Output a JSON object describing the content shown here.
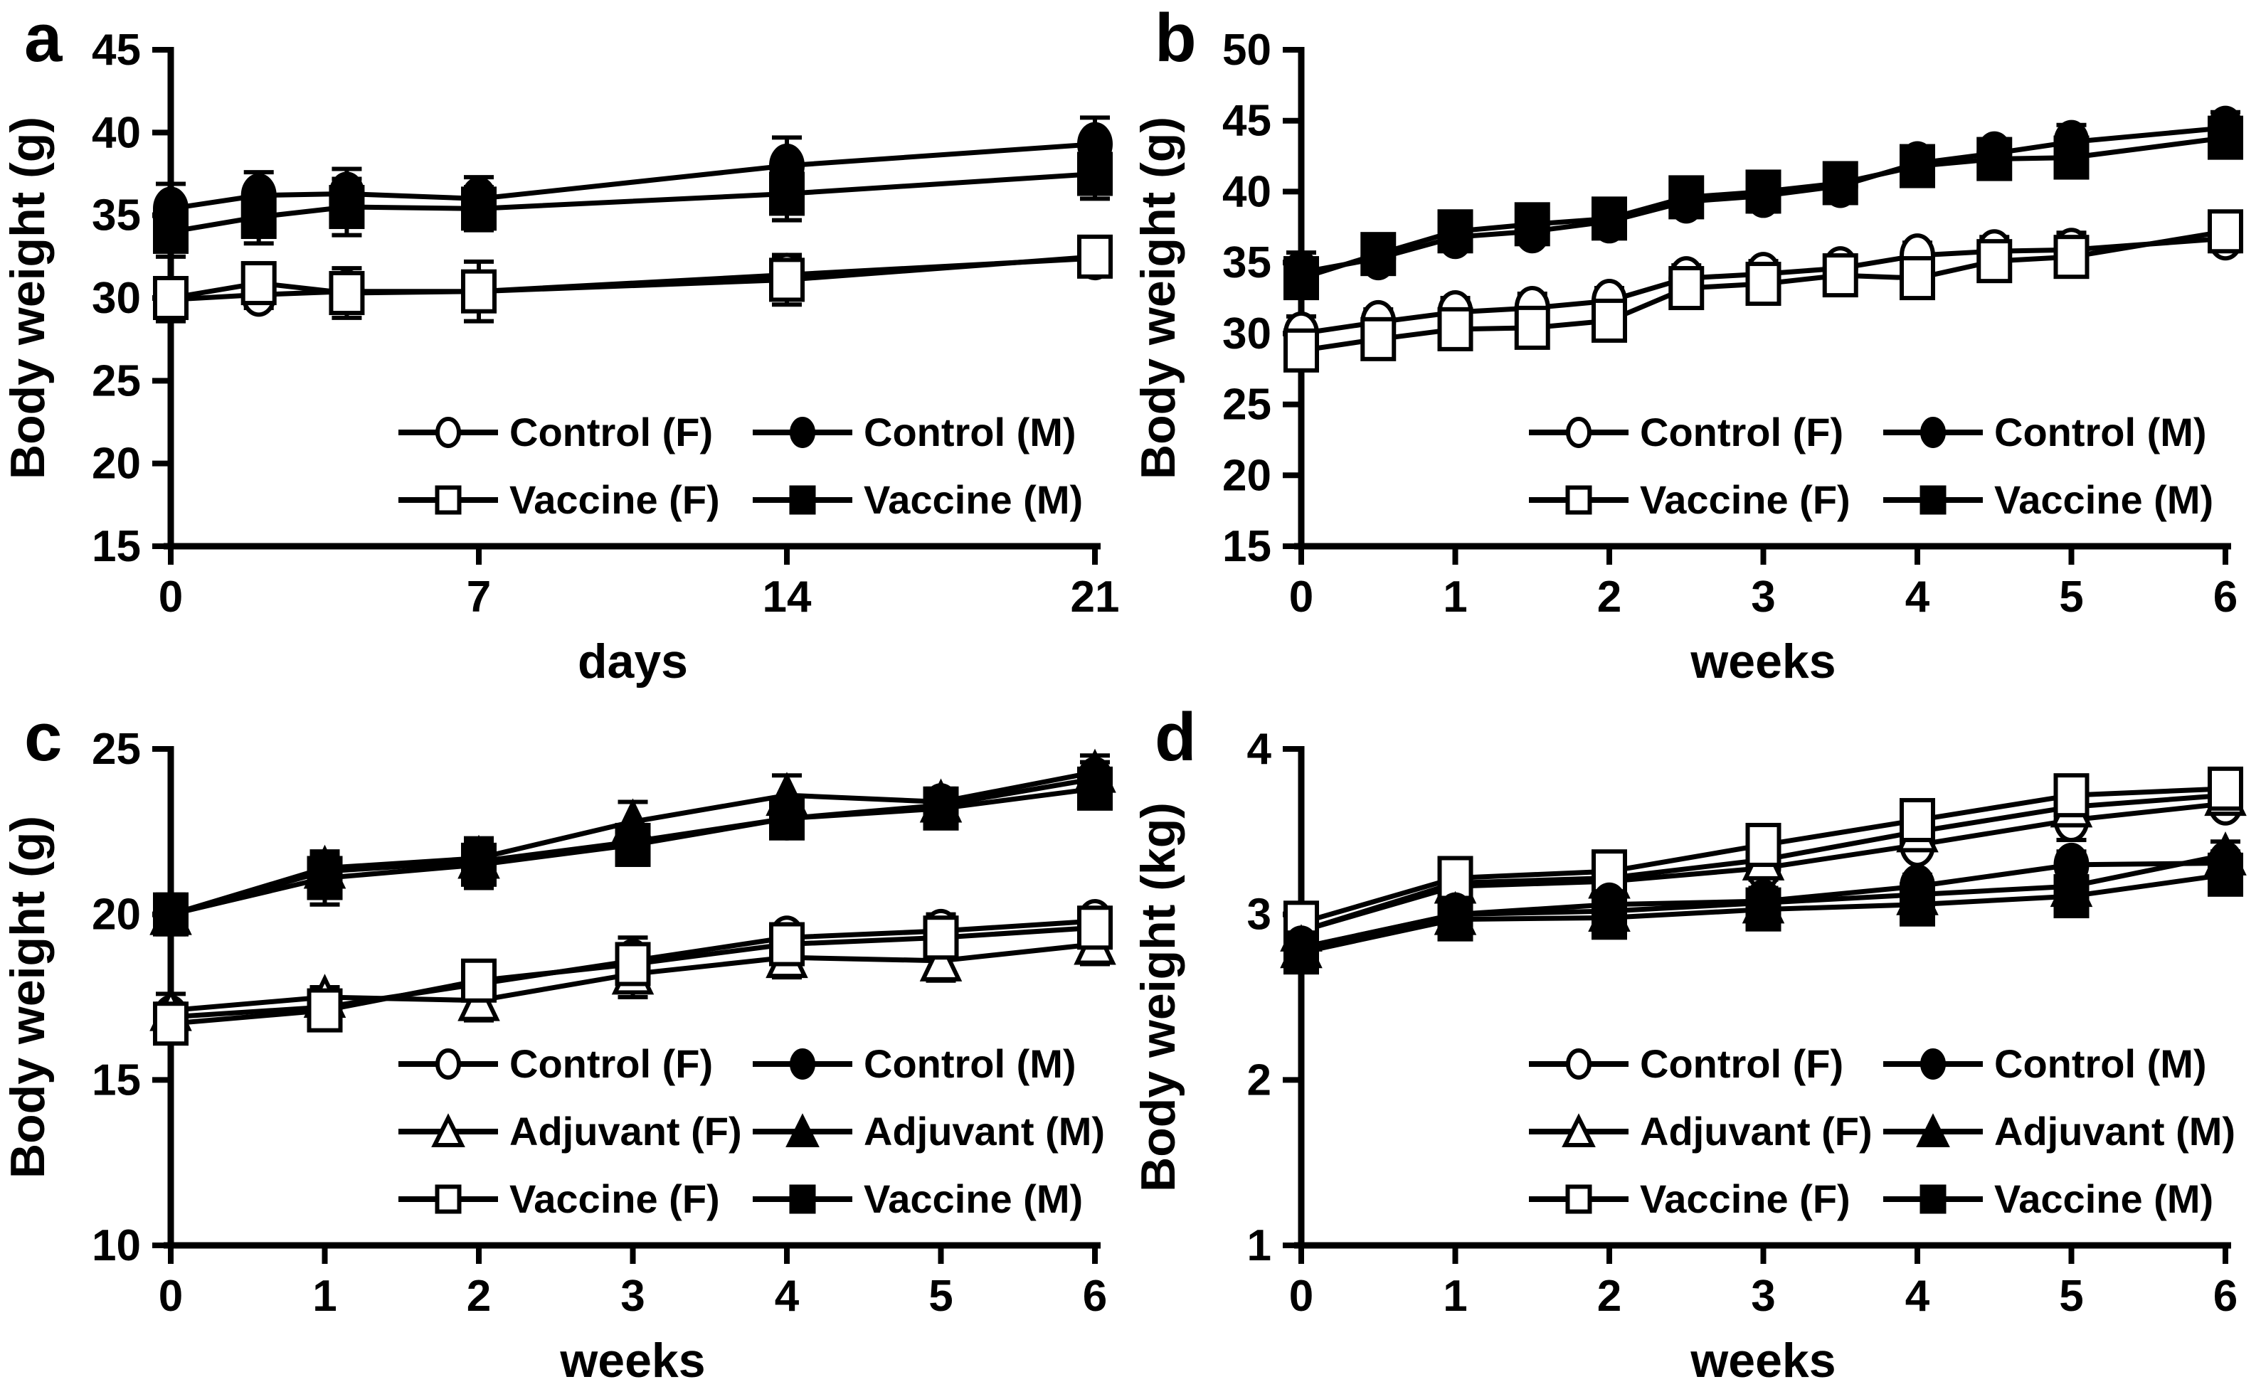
{
  "figure": {
    "background_color": "#ffffff",
    "ink_color": "#000000",
    "panel_letters": [
      "a",
      "b",
      "c",
      "d"
    ]
  },
  "chart_data": [
    {
      "panel": "a",
      "type": "line",
      "xlabel": "days",
      "ylabel": "Body weight (g)",
      "xlim": [
        0,
        21
      ],
      "ylim": [
        15,
        45
      ],
      "xticks": [
        0,
        7,
        14,
        21
      ],
      "yticks": [
        15,
        20,
        25,
        30,
        35,
        40,
        45
      ],
      "grid": false,
      "legend_position": "inside-bottom-center",
      "x": [
        0,
        2,
        4,
        7,
        14,
        21
      ],
      "series": [
        {
          "name": "Control (F)",
          "marker": "circle",
          "variant": "open",
          "values": [
            29.9,
            30.2,
            30.4,
            30.4,
            31.4,
            32.4
          ],
          "errors": [
            1.3,
            0.8,
            0.9,
            1.0,
            1.0,
            0.8
          ]
        },
        {
          "name": "Vaccine (F)",
          "marker": "square",
          "variant": "open",
          "values": [
            30.0,
            30.9,
            30.3,
            30.4,
            31.1,
            32.5
          ],
          "errors": [
            1.2,
            0.9,
            1.5,
            1.8,
            1.5,
            1.0
          ]
        },
        {
          "name": "Control (M)",
          "marker": "circle",
          "variant": "filled",
          "values": [
            35.4,
            36.2,
            36.3,
            36.0,
            38.0,
            39.3
          ],
          "errors": [
            1.5,
            1.4,
            1.5,
            1.3,
            1.7,
            1.6
          ]
        },
        {
          "name": "Vaccine (M)",
          "marker": "square",
          "variant": "filled",
          "values": [
            34.0,
            34.9,
            35.5,
            35.4,
            36.3,
            37.5
          ],
          "errors": [
            1.5,
            1.6,
            1.7,
            1.3,
            1.6,
            1.5
          ]
        }
      ],
      "legend_rows": [
        [
          0,
          2
        ],
        [
          1,
          3
        ]
      ]
    },
    {
      "panel": "b",
      "type": "line",
      "xlabel": "weeks",
      "ylabel": "Body weight (g)",
      "xlim": [
        0,
        6
      ],
      "ylim": [
        15,
        50
      ],
      "xticks": [
        0,
        1,
        2,
        3,
        4,
        5,
        6
      ],
      "yticks": [
        15,
        20,
        25,
        30,
        35,
        40,
        45,
        50
      ],
      "grid": false,
      "legend_position": "inside-bottom-center",
      "x": [
        0,
        0.5,
        1,
        1.5,
        2,
        2.5,
        3,
        3.5,
        4,
        4.5,
        5,
        6
      ],
      "series": [
        {
          "name": "Control (F)",
          "marker": "circle",
          "variant": "open",
          "values": [
            30.0,
            30.8,
            31.5,
            31.8,
            32.3,
            33.9,
            34.2,
            34.6,
            35.5,
            35.8,
            35.9,
            36.7
          ],
          "errors": [
            1.2,
            0.9,
            1.0,
            1.0,
            0.9,
            0.9,
            0.9,
            0.8,
            0.9,
            1.0,
            1.2,
            0.9
          ]
        },
        {
          "name": "Vaccine (F)",
          "marker": "square",
          "variant": "open",
          "values": [
            28.8,
            29.6,
            30.3,
            30.4,
            30.9,
            33.2,
            33.5,
            34.1,
            33.9,
            35.1,
            35.4,
            37.2
          ],
          "errors": [
            1.0,
            1.1,
            1.2,
            1.1,
            0.9,
            1.2,
            1.0,
            1.1,
            1.4,
            1.1,
            1.0,
            1.1
          ]
        },
        {
          "name": "Control (M)",
          "marker": "circle",
          "variant": "filled",
          "values": [
            34.3,
            35.3,
            36.8,
            37.2,
            37.9,
            39.3,
            39.7,
            40.4,
            42.0,
            42.7,
            43.5,
            44.5
          ],
          "errors": [
            1.4,
            0.8,
            0.7,
            0.8,
            0.8,
            1.0,
            1.1,
            1.0,
            0.8,
            1.0,
            1.2,
            1.1
          ]
        },
        {
          "name": "Vaccine (M)",
          "marker": "square",
          "variant": "filled",
          "values": [
            33.9,
            35.6,
            37.2,
            37.7,
            38.1,
            39.6,
            40.0,
            40.6,
            41.8,
            42.3,
            42.4,
            43.8
          ],
          "errors": [
            1.2,
            0.8,
            0.8,
            0.9,
            0.8,
            0.9,
            1.0,
            0.9,
            0.9,
            0.8,
            0.9,
            0.9
          ]
        }
      ],
      "legend_rows": [
        [
          0,
          2
        ],
        [
          1,
          3
        ]
      ]
    },
    {
      "panel": "c",
      "type": "line",
      "xlabel": "weeks",
      "ylabel": "Body weight (g)",
      "xlim": [
        0,
        6
      ],
      "ylim": [
        10,
        25
      ],
      "xticks": [
        0,
        1,
        2,
        3,
        4,
        5,
        6
      ],
      "yticks": [
        10,
        15,
        20,
        25
      ],
      "grid": false,
      "legend_position": "inside-bottom-center",
      "x": [
        0,
        1,
        2,
        3,
        4,
        5,
        6
      ],
      "series": [
        {
          "name": "Control (F)",
          "marker": "circle",
          "variant": "open",
          "values": [
            16.9,
            17.2,
            17.9,
            18.6,
            19.3,
            19.5,
            19.8
          ],
          "errors": [
            0.4,
            0.3,
            0.4,
            0.5,
            0.4,
            0.5,
            0.4
          ]
        },
        {
          "name": "Adjuvant (F)",
          "marker": "triangle",
          "variant": "open",
          "values": [
            17.1,
            17.5,
            17.4,
            18.2,
            18.7,
            18.6,
            19.1
          ],
          "errors": [
            0.5,
            0.3,
            0.6,
            0.7,
            0.6,
            0.6,
            0.6
          ]
        },
        {
          "name": "Vaccine (F)",
          "marker": "square",
          "variant": "open",
          "values": [
            16.7,
            17.1,
            18.0,
            18.5,
            19.1,
            19.3,
            19.6
          ],
          "errors": [
            0.5,
            0.4,
            0.5,
            0.8,
            0.5,
            0.4,
            0.5
          ]
        },
        {
          "name": "Control (M)",
          "marker": "circle",
          "variant": "filled",
          "values": [
            20.0,
            21.3,
            21.6,
            22.2,
            22.9,
            23.3,
            24.1
          ],
          "errors": [
            0.6,
            0.5,
            0.5,
            0.5,
            0.4,
            0.4,
            0.5
          ]
        },
        {
          "name": "Adjuvant (M)",
          "marker": "triangle",
          "variant": "filled",
          "values": [
            20.0,
            21.4,
            21.7,
            22.8,
            23.6,
            23.4,
            24.3
          ],
          "errors": [
            0.5,
            0.5,
            0.6,
            0.6,
            0.6,
            0.4,
            0.5
          ]
        },
        {
          "name": "Vaccine (M)",
          "marker": "square",
          "variant": "filled",
          "values": [
            20.0,
            21.1,
            21.5,
            22.1,
            22.9,
            23.2,
            23.8
          ],
          "errors": [
            0.5,
            0.8,
            0.7,
            0.6,
            0.5,
            0.5,
            0.5
          ]
        }
      ],
      "legend_rows": [
        [
          0,
          3
        ],
        [
          1,
          4
        ],
        [
          2,
          5
        ]
      ]
    },
    {
      "panel": "d",
      "type": "line",
      "xlabel": "weeks",
      "ylabel": "Body weight (kg)",
      "xlim": [
        0,
        6
      ],
      "ylim": [
        1,
        4
      ],
      "xticks": [
        0,
        1,
        2,
        3,
        4,
        5,
        6
      ],
      "yticks": [
        1,
        2,
        3,
        4
      ],
      "grid": false,
      "legend_position": "inside-bottom-center",
      "x": [
        0,
        1,
        2,
        3,
        4,
        5,
        6
      ],
      "series": [
        {
          "name": "Control (F)",
          "marker": "circle",
          "variant": "open",
          "values": [
            2.9,
            3.17,
            3.2,
            3.28,
            3.42,
            3.57,
            3.67
          ],
          "errors": [
            0.08,
            0.06,
            0.06,
            0.07,
            0.06,
            0.12,
            0.06
          ]
        },
        {
          "name": "Adjuvant (F)",
          "marker": "triangle",
          "variant": "open",
          "values": [
            2.9,
            3.19,
            3.22,
            3.33,
            3.5,
            3.65,
            3.72
          ],
          "errors": [
            0.07,
            0.06,
            0.06,
            0.06,
            0.06,
            0.06,
            0.06
          ]
        },
        {
          "name": "Vaccine (F)",
          "marker": "square",
          "variant": "open",
          "values": [
            2.95,
            3.22,
            3.26,
            3.42,
            3.57,
            3.72,
            3.76
          ],
          "errors": [
            0.1,
            0.07,
            0.07,
            0.08,
            0.08,
            0.07,
            0.07
          ]
        },
        {
          "name": "Control (M)",
          "marker": "circle",
          "variant": "filled",
          "values": [
            2.8,
            3.0,
            3.06,
            3.08,
            3.17,
            3.3,
            3.31
          ],
          "errors": [
            0.08,
            0.07,
            0.06,
            0.08,
            0.07,
            0.08,
            0.07
          ]
        },
        {
          "name": "Adjuvant (M)",
          "marker": "triangle",
          "variant": "filled",
          "values": [
            2.8,
            3.0,
            3.02,
            3.07,
            3.12,
            3.17,
            3.36
          ],
          "errors": [
            0.07,
            0.06,
            0.06,
            0.06,
            0.06,
            0.07,
            0.08
          ]
        },
        {
          "name": "Vaccine (M)",
          "marker": "square",
          "variant": "filled",
          "values": [
            2.77,
            2.97,
            2.98,
            3.03,
            3.06,
            3.11,
            3.24
          ],
          "errors": [
            0.08,
            0.08,
            0.07,
            0.09,
            0.08,
            0.08,
            0.09
          ]
        }
      ],
      "legend_rows": [
        [
          0,
          3
        ],
        [
          1,
          4
        ],
        [
          2,
          5
        ]
      ]
    }
  ]
}
